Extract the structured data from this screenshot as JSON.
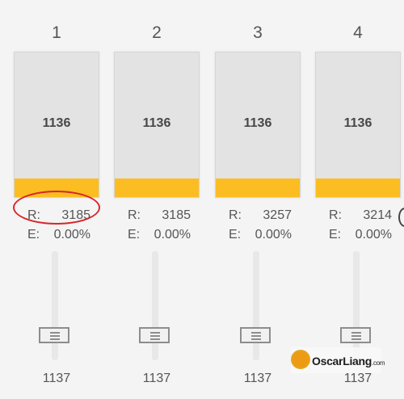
{
  "colors": {
    "meter_fill": "#fbbd21",
    "meter_bg": "#e3e3e3",
    "highlight": "#d8262a",
    "background": "#f4f4f4"
  },
  "labels": {
    "rpm": "R:",
    "error": "E:"
  },
  "motors": [
    {
      "number": "1",
      "value": "1136",
      "rpm": "3185",
      "error": "0.00%",
      "set_value": "1137",
      "level_percent": 13,
      "slider_percent": 77,
      "highlighted": true
    },
    {
      "number": "2",
      "value": "1136",
      "rpm": "3185",
      "error": "0.00%",
      "set_value": "1137",
      "level_percent": 13,
      "slider_percent": 77,
      "highlighted": false
    },
    {
      "number": "3",
      "value": "1136",
      "rpm": "3257",
      "error": "0.00%",
      "set_value": "1137",
      "level_percent": 13,
      "slider_percent": 77,
      "highlighted": false
    },
    {
      "number": "4",
      "value": "1136",
      "rpm": "3214",
      "error": "0.00%",
      "set_value": "1137",
      "level_percent": 13,
      "slider_percent": 77,
      "highlighted": false
    }
  ],
  "watermark": {
    "name": "OscarLiang",
    "domain": ".com",
    "icon": "oscar-liang-logo-icon"
  },
  "edge_icon": "partial-circle-icon"
}
